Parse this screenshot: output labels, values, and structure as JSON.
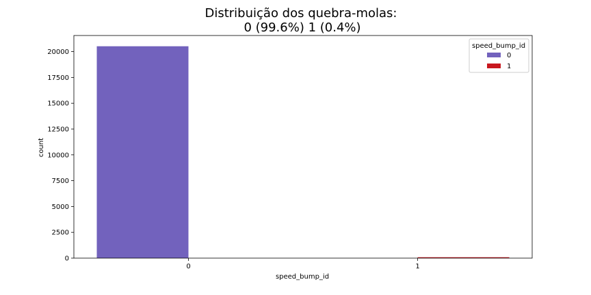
{
  "chart_data": {
    "type": "bar",
    "title_line1": "Distribuição dos quebra-molas:",
    "title_line2": "0 (99.6%) 1 (0.4%)",
    "xlabel": "speed_bump_id",
    "ylabel": "count",
    "categories": [
      "0",
      "1"
    ],
    "series": [
      {
        "name": "0",
        "color": "#7262bd",
        "values": [
          20520,
          0
        ]
      },
      {
        "name": "1",
        "color": "#c8171e",
        "values": [
          0,
          85
        ]
      }
    ],
    "ylim": [
      0,
      21560
    ],
    "yticks": [
      0,
      2500,
      5000,
      7500,
      10000,
      12500,
      15000,
      17500,
      20000
    ],
    "grid": false,
    "legend": {
      "title": "speed_bump_id",
      "placement": "top-right"
    }
  }
}
